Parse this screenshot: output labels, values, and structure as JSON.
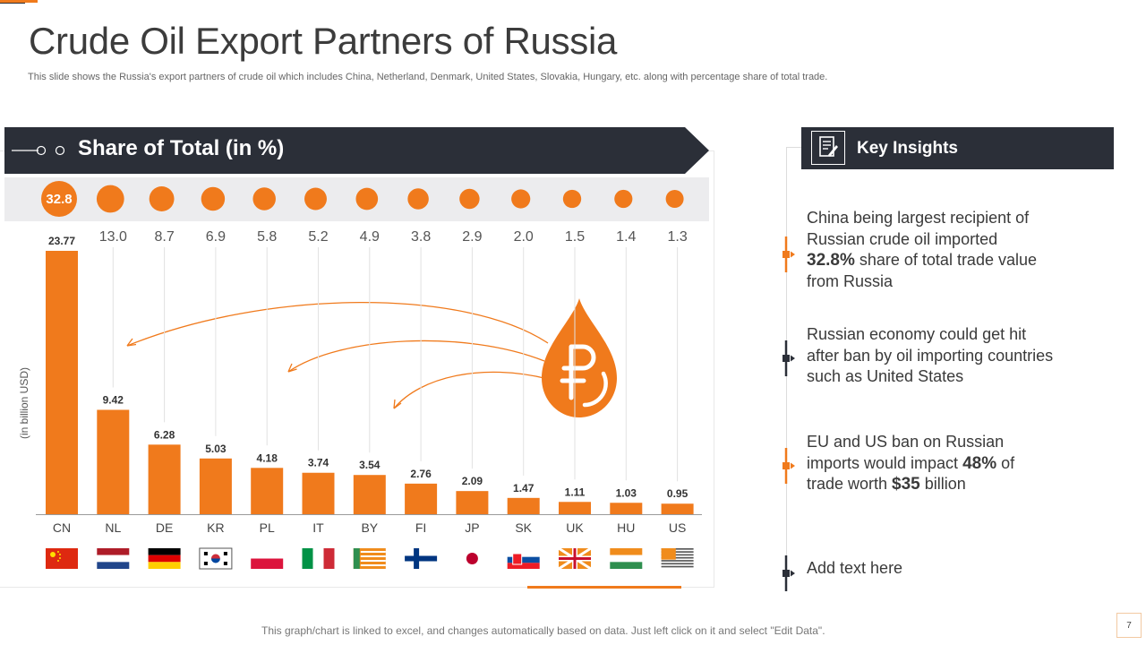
{
  "slide": {
    "title": "Crude Oil Export Partners of Russia",
    "subtitle": "This slide shows the Russia's export partners of crude oil which includes China, Netherland, Denmark, United States, Slovakia, Hungary, etc. along with percentage share of total trade.",
    "footer": "This graph/chart is linked to excel, and changes automatically based on data. Just left click on it and select \"Edit Data\".",
    "page_number": "7"
  },
  "colors": {
    "accent": "#f07a1c",
    "dark": "#2b2f38",
    "band": "#ececee"
  },
  "chart_data": {
    "type": "bar",
    "banner_title": "Share of Total (in %)",
    "ylabel": "(in billion USD)",
    "categories": [
      "CN",
      "NL",
      "DE",
      "KR",
      "PL",
      "IT",
      "BY",
      "FI",
      "JP",
      "SK",
      "UK",
      "HU",
      "US"
    ],
    "values": [
      23.77,
      9.42,
      6.28,
      5.03,
      4.18,
      3.74,
      3.54,
      2.76,
      2.09,
      1.47,
      1.11,
      1.03,
      0.95
    ],
    "value_labels": [
      "23.77",
      "9.42",
      "6.28",
      "5.03",
      "4.18",
      "3.74",
      "3.54",
      "2.76",
      "2.09",
      "1.47",
      "1.11",
      "1.03",
      "0.95"
    ],
    "share_percent": [
      32.8,
      13.0,
      8.7,
      6.9,
      5.8,
      5.2,
      4.9,
      3.8,
      2.9,
      2.0,
      1.5,
      1.4,
      1.3
    ],
    "share_labels": [
      "32.8",
      "13.0",
      "8.7",
      "6.9",
      "5.8",
      "5.2",
      "4.9",
      "3.8",
      "2.9",
      "2.0",
      "1.5",
      "1.4",
      "1.3"
    ],
    "flags": [
      "china-flag",
      "netherlands-flag",
      "germany-flag",
      "south-korea-flag",
      "poland-flag",
      "italy-flag",
      "belarus-flag",
      "finland-flag",
      "japan-flag",
      "slovakia-flag",
      "uk-flag",
      "hungary-flag",
      "us-flag"
    ],
    "ylim": [
      0,
      25
    ],
    "grid": false,
    "center_icon": "ruble-oil-drop-icon"
  },
  "key_insights": {
    "title": "Key Insights",
    "icon": "document-pen-icon",
    "items": [
      {
        "pre": "China being largest recipient of Russian crude oil imported ",
        "bold1": "32.8%",
        "mid": " share of total trade value from Russia",
        "bold2": "",
        "post": ""
      },
      {
        "pre": "Russian economy could get hit after ban by oil importing countries such as United States",
        "bold1": "",
        "mid": "",
        "bold2": "",
        "post": ""
      },
      {
        "pre": "EU and US ban on Russian imports would impact ",
        "bold1": "48%",
        "mid": " of trade worth ",
        "bold2": "$35",
        "post": " billion"
      },
      {
        "pre": "Add text here",
        "bold1": "",
        "mid": "",
        "bold2": "",
        "post": ""
      }
    ]
  }
}
